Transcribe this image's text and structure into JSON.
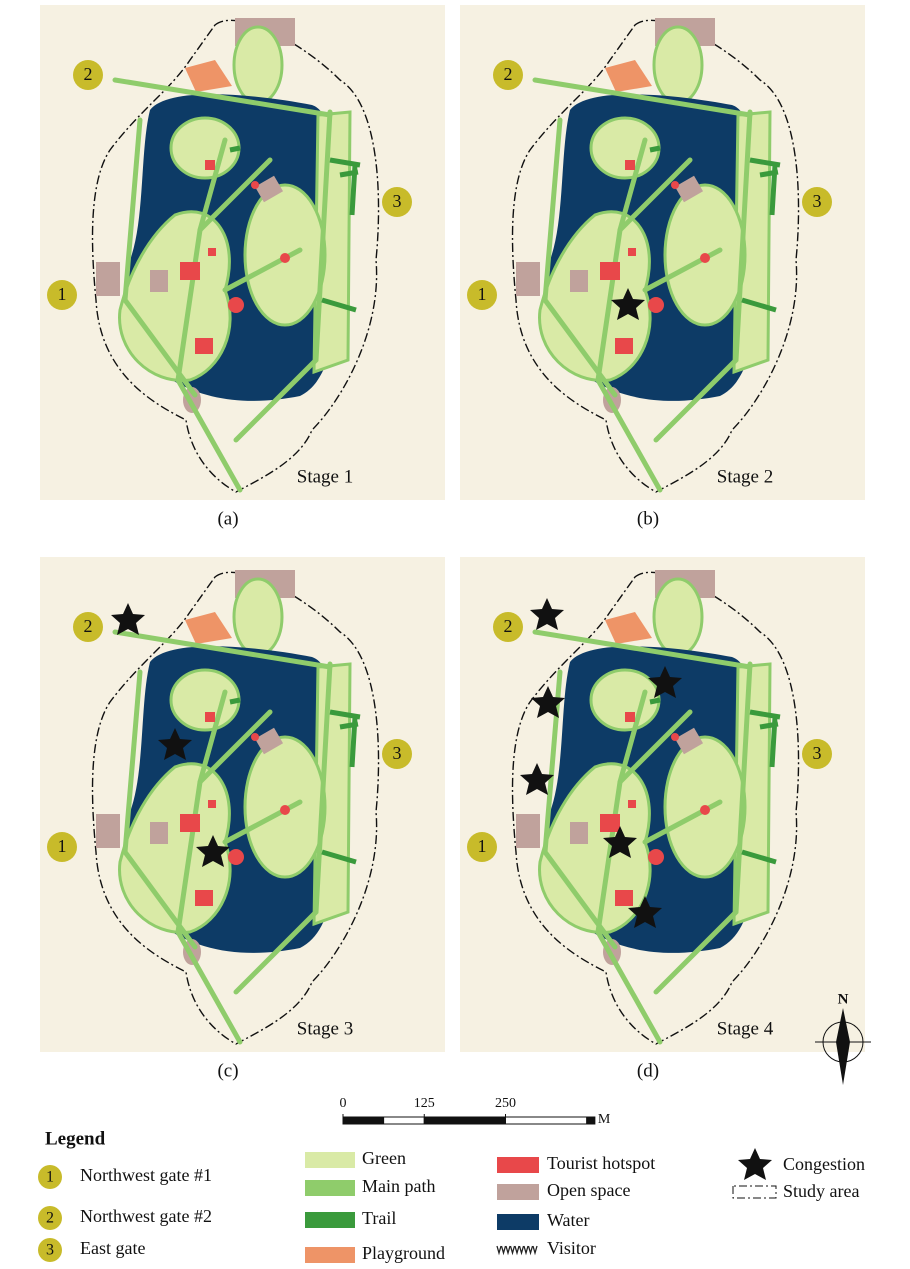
{
  "panels": [
    {
      "stage": "Stage 1",
      "letter": "(a)"
    },
    {
      "stage": "Stage 2",
      "letter": "(b)"
    },
    {
      "stage": "Stage 3",
      "letter": "(c)"
    },
    {
      "stage": "Stage 4",
      "letter": "(d)"
    }
  ],
  "gates": [
    {
      "number": "1",
      "name": "Northwest gate #1"
    },
    {
      "number": "2",
      "name": "Northwest gate #2"
    },
    {
      "number": "3",
      "name": "East gate"
    }
  ],
  "scale_bar": {
    "ticks": [
      0,
      125,
      250
    ],
    "unit": "M"
  },
  "compass": "N",
  "legend": {
    "title": "Legend",
    "items": [
      {
        "label": "Green",
        "color": "#d9eaa6"
      },
      {
        "label": "Main path",
        "color": "#8fcc6b"
      },
      {
        "label": "Trail",
        "color": "#3a9a3c"
      },
      {
        "label": "Playground",
        "color": "#ee9467"
      },
      {
        "label": "Tourist hotspot",
        "color": "#e8484a"
      },
      {
        "label": "Open space",
        "color": "#c0a29c"
      },
      {
        "label": "Water",
        "color": "#0d3b66"
      },
      {
        "label": "Visitor",
        "color": "#222222"
      }
    ],
    "congestion": "Congestion",
    "study_area": "Study area"
  }
}
